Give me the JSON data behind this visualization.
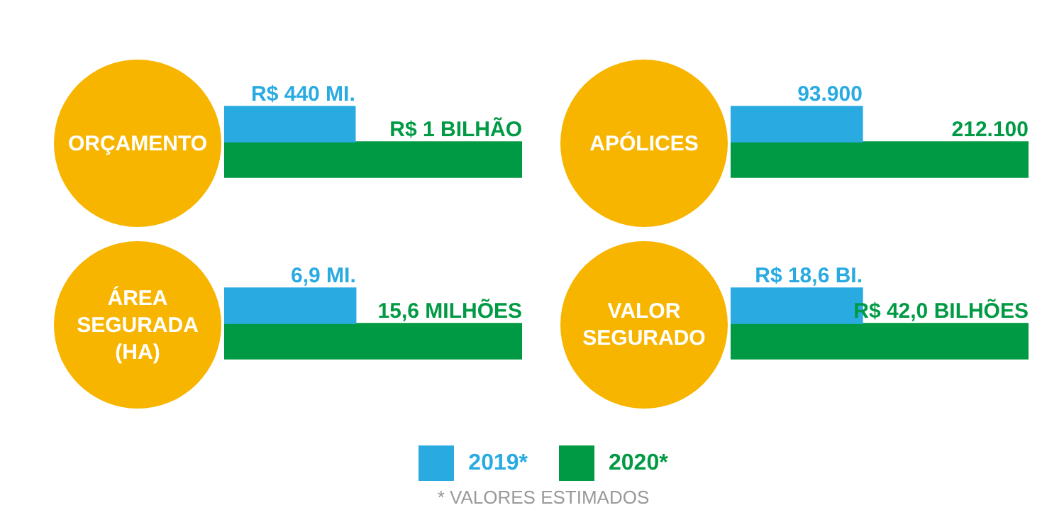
{
  "chart_data": [
    {
      "type": "bar",
      "orientation": "horizontal",
      "title": "ORÇAMENTO",
      "categories": [
        null
      ],
      "tick_labels": false,
      "legend": "bottom",
      "annotations": [
        "* VALORES ESTIMADOS"
      ],
      "series": [
        {
          "name": "2019*",
          "color": "#29abe2",
          "values": [
            440
          ],
          "value_labels": [
            "R$ 440 MI."
          ]
        },
        {
          "name": "2020*",
          "color": "#009a44",
          "values": [
            1000
          ],
          "value_labels": [
            "R$ 1 BILHÃO"
          ]
        }
      ]
    },
    {
      "type": "bar",
      "orientation": "horizontal",
      "title": "APÓLICES",
      "categories": [
        null
      ],
      "tick_labels": false,
      "series": [
        {
          "color": "#29abe2",
          "values": [
            93900
          ],
          "value_labels": [
            "93.900"
          ]
        },
        {
          "color": "#009a44",
          "values": [
            212100
          ],
          "value_labels": [
            "212.100"
          ]
        }
      ]
    },
    {
      "type": "bar",
      "orientation": "horizontal",
      "title": "ÁREA SEGURADA (HA)",
      "categories": [
        null
      ],
      "tick_labels": false,
      "series": [
        {
          "color": "#29abe2",
          "values": [
            6.9
          ],
          "value_labels": [
            "6,9 MI."
          ]
        },
        {
          "color": "#009a44",
          "values": [
            15.6
          ],
          "value_labels": [
            "15,6 MILHÕES"
          ]
        }
      ]
    },
    {
      "type": "bar",
      "orientation": "horizontal",
      "title": "VALOR SEGURADO",
      "categories": [
        null
      ],
      "tick_labels": false,
      "series": [
        {
          "color": "#29abe2",
          "values": [
            18.6
          ],
          "value_labels": [
            "R$ 18,6 BI."
          ]
        },
        {
          "color": "#009a44",
          "values": [
            42.0
          ],
          "value_labels": [
            "R$ 42,0 BILHÕES"
          ]
        }
      ]
    }
  ]
}
